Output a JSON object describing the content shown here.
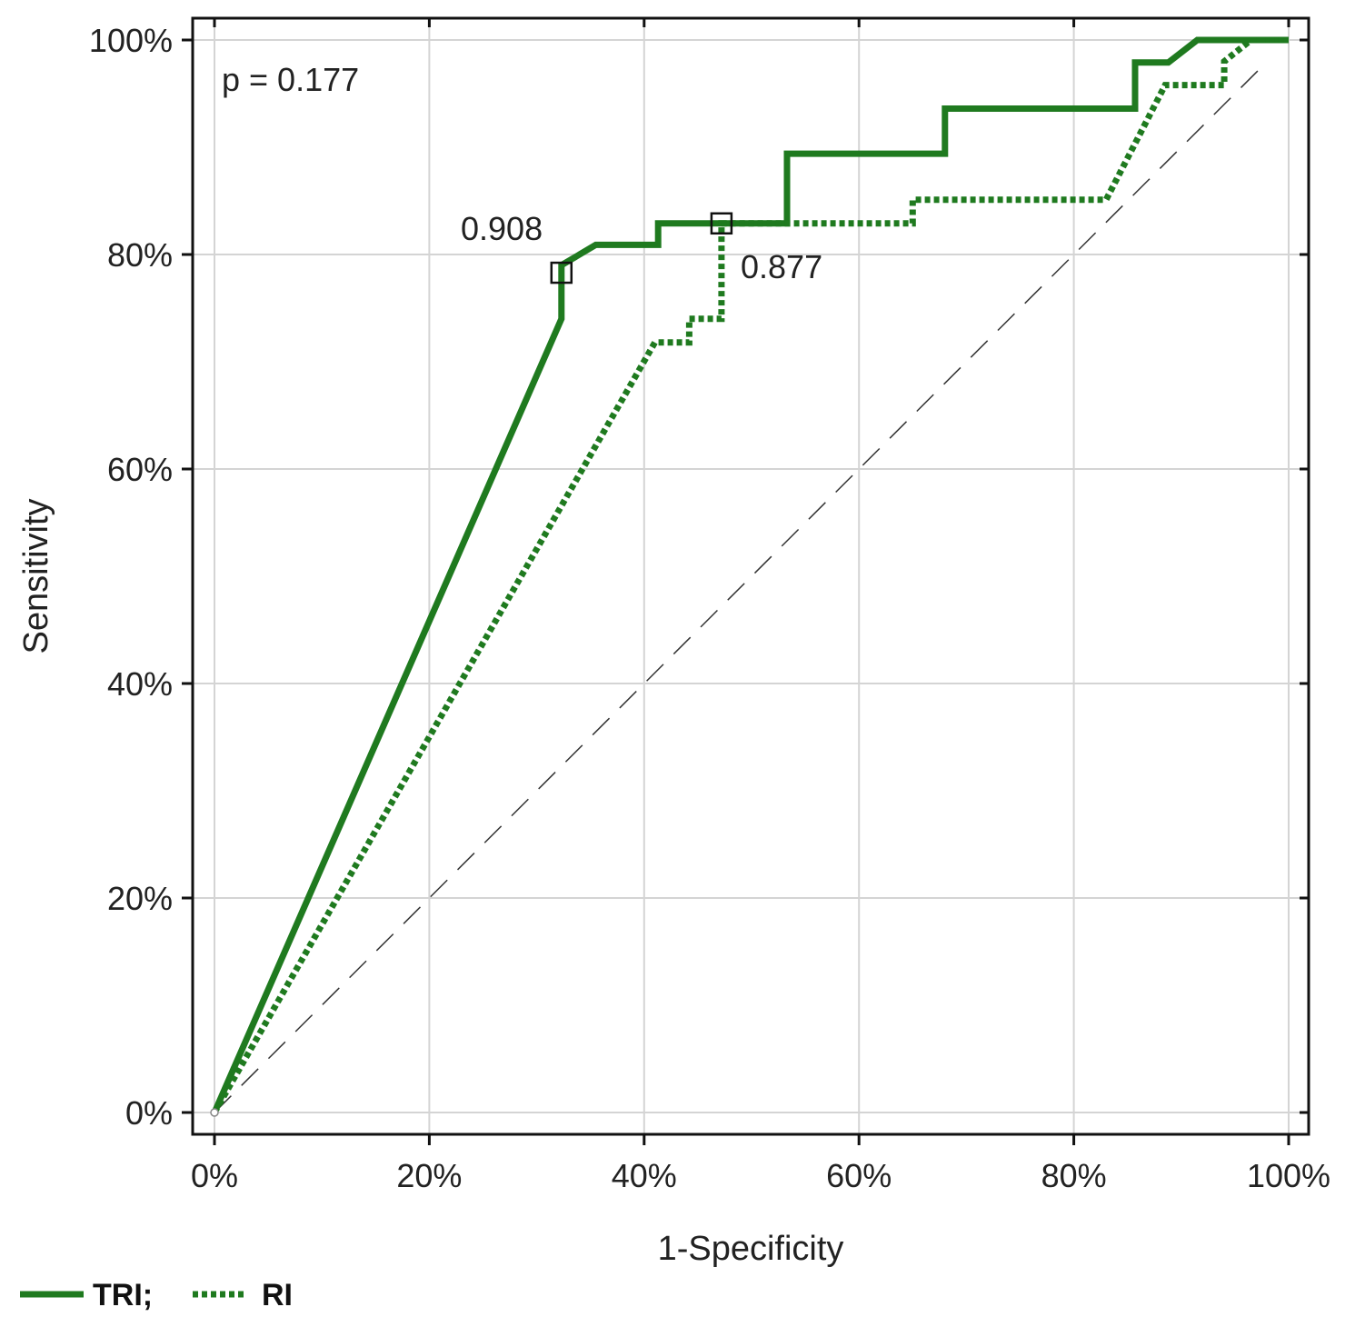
{
  "chart_data": {
    "type": "line",
    "title": "",
    "xlabel": "1-Specificity",
    "ylabel": "Sensitivity",
    "xlim": [
      0,
      100
    ],
    "ylim": [
      0,
      100
    ],
    "x_ticks": [
      "0%",
      "20%",
      "40%",
      "60%",
      "80%",
      "100%"
    ],
    "y_ticks": [
      "0%",
      "20%",
      "40%",
      "60%",
      "80%",
      "100%"
    ],
    "grid": true,
    "annotation_p": "p = 0.177",
    "series": [
      {
        "name": "TRI",
        "style": "solid",
        "color": "#1f7a1f",
        "points": [
          [
            0,
            0
          ],
          [
            32.3,
            74
          ],
          [
            32.3,
            79
          ],
          [
            35.5,
            80.9
          ],
          [
            41.3,
            80.9
          ],
          [
            41.3,
            82.9
          ],
          [
            53.3,
            82.9
          ],
          [
            53.3,
            89.4
          ],
          [
            68,
            89.4
          ],
          [
            68,
            93.6
          ],
          [
            85.7,
            93.6
          ],
          [
            85.7,
            97.9
          ],
          [
            88.8,
            97.9
          ],
          [
            91.5,
            100
          ],
          [
            100,
            100
          ]
        ],
        "cutoff_point": [
          32.3,
          78.3
        ],
        "cutoff_label": "0.908"
      },
      {
        "name": "RI",
        "style": "dotted",
        "color": "#1f7a1f",
        "points": [
          [
            0,
            0
          ],
          [
            41,
            71.8
          ],
          [
            44.2,
            71.8
          ],
          [
            44.2,
            74
          ],
          [
            47.2,
            74
          ],
          [
            47.2,
            82.9
          ],
          [
            65,
            82.9
          ],
          [
            65,
            85.1
          ],
          [
            83,
            85.1
          ],
          [
            88.5,
            95.8
          ],
          [
            94,
            95.8
          ],
          [
            94,
            98
          ],
          [
            96.5,
            100
          ],
          [
            100,
            100
          ]
        ],
        "cutoff_point": [
          47.2,
          82.9
        ],
        "cutoff_label": "0.877"
      },
      {
        "name": "reference",
        "style": "dashed",
        "color": "#333333",
        "points": [
          [
            0,
            0
          ],
          [
            98,
            98
          ]
        ]
      }
    ],
    "legend": {
      "position": "bottom-left",
      "entries": [
        "TRI;",
        "RI"
      ]
    }
  }
}
